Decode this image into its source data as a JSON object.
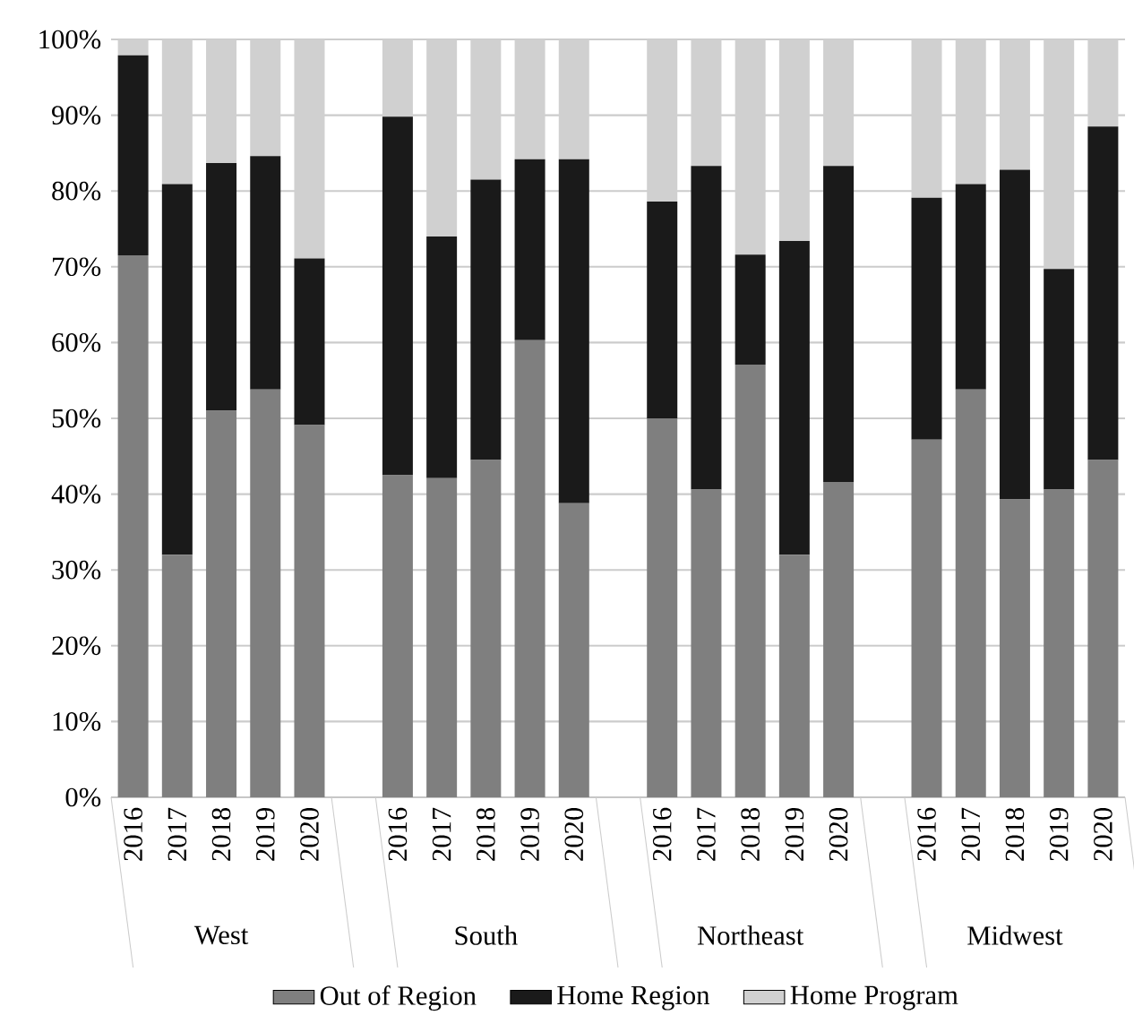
{
  "chart_data": {
    "type": "bar",
    "stacked": true,
    "categories": [
      "2016",
      "2017",
      "2018",
      "2019",
      "2020",
      null,
      "2016",
      "2017",
      "2018",
      "2019",
      "2020",
      null,
      "2016",
      "2017",
      "2018",
      "2019",
      "2020",
      null,
      "2016",
      "2017",
      "2018",
      "2019",
      "2020"
    ],
    "annotations": [
      "West",
      "South",
      "Northeast",
      "Midwest"
    ],
    "series": [
      {
        "name": "Out of Region",
        "color": "#7f7f7f",
        "values": [
          71.5,
          32,
          51.0,
          53.8,
          49.1,
          null,
          42.5,
          42.1,
          44.5,
          60.3,
          38.8,
          null,
          50.0,
          40.6,
          57.1,
          32,
          41.6,
          null,
          47.2,
          53.8,
          39.3,
          40.6,
          44.5
        ]
      },
      {
        "name": "Home Region",
        "color": "#1a1a1a",
        "values": [
          26.4,
          48.9,
          32.7,
          30.8,
          22.0,
          null,
          47.3,
          31.9,
          37.0,
          23.9,
          45.4,
          null,
          28.6,
          42.7,
          14.5,
          41.4,
          41.7,
          null,
          31.9,
          27.1,
          43.5,
          29.1,
          44.0
        ]
      },
      {
        "name": "Home Program",
        "color": "#d0d0d0",
        "values": [
          2.1,
          19.1,
          16.3,
          15.4,
          28.9,
          null,
          10.2,
          26.0,
          18.5,
          15.8,
          15.8,
          null,
          21.4,
          16.7,
          28.4,
          26.6,
          16.7,
          null,
          20.9,
          19.1,
          17.2,
          30.3,
          11.5
        ]
      }
    ],
    "ylim": [
      0,
      100
    ],
    "yticks": [
      {
        "value": 0,
        "label": "0%"
      },
      {
        "value": 10,
        "label": "10%"
      },
      {
        "value": 20,
        "label": "20%"
      },
      {
        "value": 30,
        "label": "30%"
      },
      {
        "value": 40,
        "label": "40%"
      },
      {
        "value": 50,
        "label": "50%"
      },
      {
        "value": 60,
        "label": "60%"
      },
      {
        "value": 70,
        "label": "70%"
      },
      {
        "value": 80,
        "label": "80%"
      },
      {
        "value": 90,
        "label": "90%"
      },
      {
        "value": 100,
        "label": "100%"
      }
    ],
    "grid": "y",
    "legend": "bottom"
  }
}
